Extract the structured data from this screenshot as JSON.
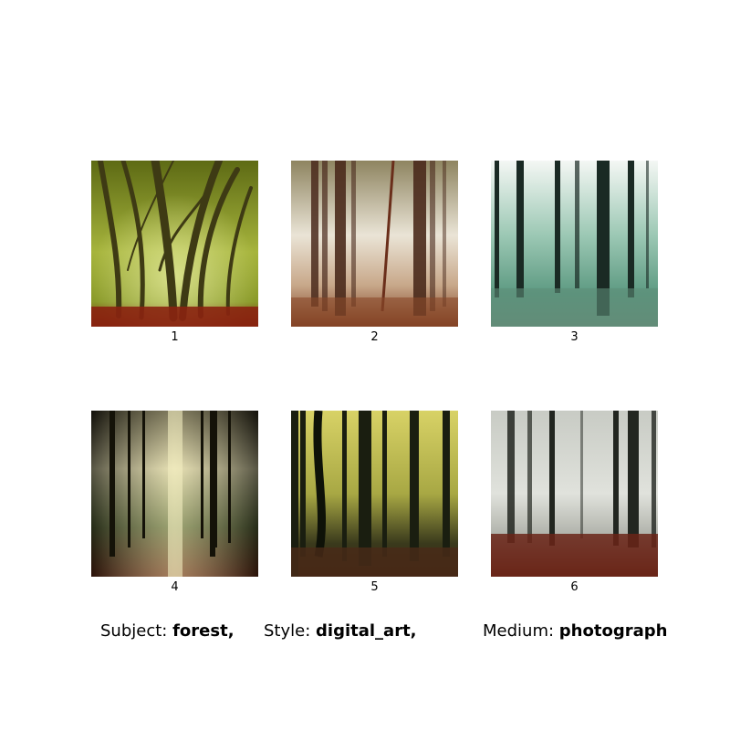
{
  "grid": {
    "images": [
      {
        "caption": "1",
        "palette": [
          "#6d7a1c",
          "#c7d16a",
          "#8a2b12"
        ]
      },
      {
        "caption": "2",
        "palette": [
          "#7a6a4a",
          "#efe8dc",
          "#8b4a2a"
        ]
      },
      {
        "caption": "3",
        "palette": [
          "#5f9c84",
          "#f2f5f2",
          "#2e4a40"
        ]
      },
      {
        "caption": "4",
        "palette": [
          "#1c1a12",
          "#e6e0b0",
          "#6a2a14"
        ]
      },
      {
        "caption": "5",
        "palette": [
          "#c9c45a",
          "#1e2412",
          "#4a2a18"
        ]
      },
      {
        "caption": "6",
        "palette": [
          "#d7dbd6",
          "#202420",
          "#6a2a1a"
        ]
      }
    ]
  },
  "footer": {
    "subject_label": "Subject:",
    "subject_value": "forest,",
    "style_label": "Style:",
    "style_value": "digital_art,",
    "medium_label": "Medium:",
    "medium_value": "photograph"
  }
}
